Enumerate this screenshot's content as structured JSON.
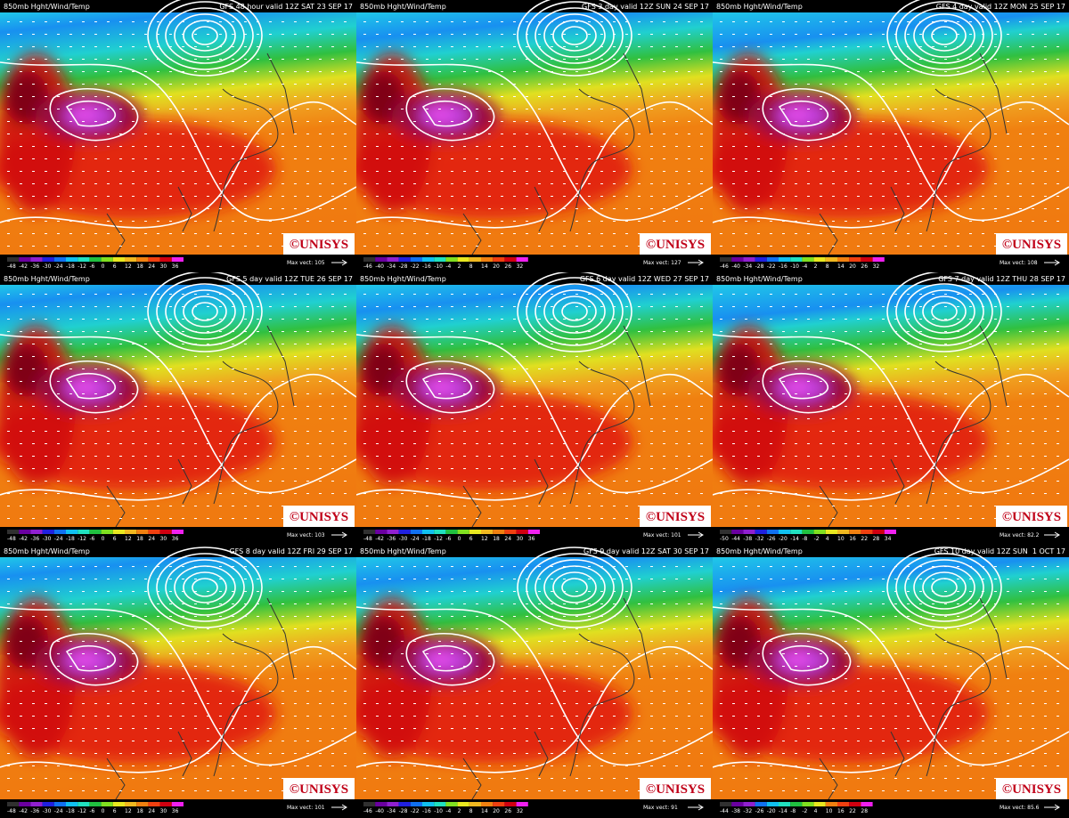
{
  "logo": "©UNISYS",
  "panels": [
    {
      "title": "850mb Hght/Wind/Temp",
      "valid": "GFS 48 hour valid 12Z SAT 23 SEP 17",
      "scale": [
        -48,
        -42,
        -36,
        -30,
        -24,
        -18,
        -12,
        -6,
        0,
        6,
        12,
        18,
        24,
        30,
        36
      ],
      "max_vect": "Max vect: 105"
    },
    {
      "title": "850mb Hght/Wind/Temp",
      "valid": "GFS 3 day valid 12Z SUN 24 SEP 17",
      "scale": [
        -46,
        -40,
        -34,
        -28,
        -22,
        -16,
        -10,
        -4,
        2,
        8,
        14,
        20,
        26,
        32
      ],
      "max_vect": "Max vect: 127"
    },
    {
      "title": "850mb Hght/Wind/Temp",
      "valid": "GFS 4 day valid 12Z MON 25 SEP 17",
      "scale": [
        -46,
        -40,
        -34,
        -28,
        -22,
        -16,
        -10,
        -4,
        2,
        8,
        14,
        20,
        26,
        32
      ],
      "max_vect": "Max vect: 108"
    },
    {
      "title": "850mb Hght/Wind/Temp",
      "valid": "GFS 5 day valid 12Z TUE 26 SEP 17",
      "scale": [
        -48,
        -42,
        -36,
        -30,
        -24,
        -18,
        -12,
        -6,
        0,
        6,
        12,
        18,
        24,
        30,
        36
      ],
      "max_vect": "Max vect: 103"
    },
    {
      "title": "850mb Hght/Wind/Temp",
      "valid": "GFS 6 day valid 12Z WED 27 SEP 17",
      "scale": [
        -48,
        -42,
        -36,
        -30,
        -24,
        -18,
        -12,
        -6,
        0,
        6,
        12,
        18,
        24,
        30,
        36
      ],
      "max_vect": "Max vect: 101"
    },
    {
      "title": "850mb Hght/Wind/Temp",
      "valid": "GFS 7 day valid 12Z THU 28 SEP 17",
      "scale": [
        -50,
        -44,
        -38,
        -32,
        -26,
        -20,
        -14,
        -8,
        -2,
        4,
        10,
        16,
        22,
        28,
        34
      ],
      "max_vect": "Max vect: 82.2"
    },
    {
      "title": "850mb Hght/Wind/Temp",
      "valid": "GFS 8 day valid 12Z FRI 29 SEP 17",
      "scale": [
        -48,
        -42,
        -36,
        -30,
        -24,
        -18,
        -12,
        -6,
        0,
        6,
        12,
        18,
        24,
        30,
        36
      ],
      "max_vect": "Max vect: 101"
    },
    {
      "title": "850mb Hght/Wind/Temp",
      "valid": "GFS 9 day valid 12Z SAT 30 SEP 17",
      "scale": [
        -46,
        -40,
        -34,
        -28,
        -22,
        -16,
        -10,
        -4,
        2,
        8,
        14,
        20,
        26,
        32
      ],
      "max_vect": "Max vect: 91"
    },
    {
      "title": "850mb Hght/Wind/Temp",
      "valid": "GFS 10 day valid 12Z SUN  1 OCT 17",
      "scale": [
        -44,
        -38,
        -32,
        -26,
        -20,
        -14,
        -8,
        -2,
        4,
        10,
        16,
        22,
        28
      ],
      "max_vect": "Max vect: 85.6"
    }
  ]
}
